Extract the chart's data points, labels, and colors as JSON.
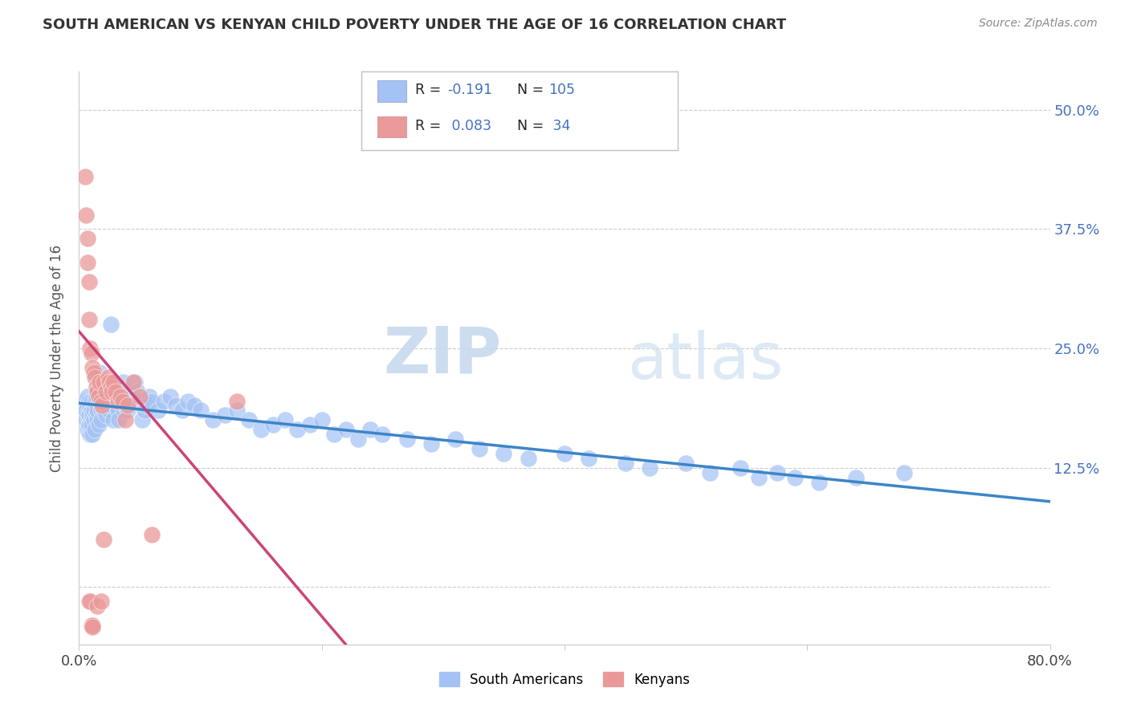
{
  "title": "SOUTH AMERICAN VS KENYAN CHILD POVERTY UNDER THE AGE OF 16 CORRELATION CHART",
  "source": "Source: ZipAtlas.com",
  "ylabel": "Child Poverty Under the Age of 16",
  "xmin": 0.0,
  "xmax": 0.8,
  "ymin": -0.06,
  "ymax": 0.54,
  "xtick_positions": [
    0.0,
    0.2,
    0.4,
    0.6,
    0.8
  ],
  "xticklabels": [
    "0.0%",
    "",
    "",
    "",
    "80.0%"
  ],
  "ytick_positions": [
    0.0,
    0.125,
    0.25,
    0.375,
    0.5
  ],
  "yticklabels_right": [
    "",
    "12.5%",
    "25.0%",
    "37.5%",
    "50.0%"
  ],
  "blue_scatter_color": "#a4c2f4",
  "pink_scatter_color": "#ea9999",
  "blue_line_color": "#3d85c8",
  "pink_line_color": "#cc4477",
  "watermark_text": "ZIPatlas",
  "watermark_color": "#d0dff0",
  "title_color": "#333333",
  "source_color": "#888888",
  "right_tick_color": "#4472c4",
  "grid_color": "#cccccc",
  "blue_label": "South Americans",
  "pink_label": "Kenyans",
  "sa_x": [
    0.005,
    0.006,
    0.006,
    0.007,
    0.007,
    0.008,
    0.008,
    0.008,
    0.009,
    0.009,
    0.01,
    0.01,
    0.01,
    0.01,
    0.01,
    0.011,
    0.011,
    0.012,
    0.012,
    0.012,
    0.013,
    0.013,
    0.014,
    0.014,
    0.015,
    0.015,
    0.016,
    0.016,
    0.017,
    0.017,
    0.018,
    0.018,
    0.019,
    0.02,
    0.02,
    0.021,
    0.022,
    0.023,
    0.024,
    0.025,
    0.026,
    0.027,
    0.028,
    0.03,
    0.031,
    0.032,
    0.033,
    0.034,
    0.035,
    0.036,
    0.037,
    0.038,
    0.04,
    0.042,
    0.044,
    0.046,
    0.048,
    0.05,
    0.052,
    0.054,
    0.056,
    0.058,
    0.06,
    0.065,
    0.07,
    0.075,
    0.08,
    0.085,
    0.09,
    0.095,
    0.1,
    0.11,
    0.12,
    0.13,
    0.14,
    0.15,
    0.16,
    0.17,
    0.18,
    0.19,
    0.2,
    0.21,
    0.22,
    0.23,
    0.24,
    0.25,
    0.27,
    0.29,
    0.31,
    0.33,
    0.35,
    0.37,
    0.4,
    0.42,
    0.45,
    0.47,
    0.5,
    0.52,
    0.545,
    0.56,
    0.575,
    0.59,
    0.61,
    0.64,
    0.68
  ],
  "sa_y": [
    0.195,
    0.175,
    0.185,
    0.165,
    0.2,
    0.17,
    0.18,
    0.195,
    0.16,
    0.19,
    0.175,
    0.185,
    0.165,
    0.17,
    0.195,
    0.18,
    0.16,
    0.19,
    0.175,
    0.185,
    0.165,
    0.195,
    0.18,
    0.2,
    0.175,
    0.185,
    0.215,
    0.17,
    0.225,
    0.195,
    0.185,
    0.175,
    0.205,
    0.2,
    0.185,
    0.195,
    0.18,
    0.2,
    0.195,
    0.185,
    0.275,
    0.19,
    0.175,
    0.2,
    0.19,
    0.185,
    0.175,
    0.195,
    0.2,
    0.215,
    0.185,
    0.19,
    0.185,
    0.195,
    0.2,
    0.215,
    0.205,
    0.195,
    0.175,
    0.185,
    0.19,
    0.2,
    0.195,
    0.185,
    0.195,
    0.2,
    0.19,
    0.185,
    0.195,
    0.19,
    0.185,
    0.175,
    0.18,
    0.185,
    0.175,
    0.165,
    0.17,
    0.175,
    0.165,
    0.17,
    0.175,
    0.16,
    0.165,
    0.155,
    0.165,
    0.16,
    0.155,
    0.15,
    0.155,
    0.145,
    0.14,
    0.135,
    0.14,
    0.135,
    0.13,
    0.125,
    0.13,
    0.12,
    0.125,
    0.115,
    0.12,
    0.115,
    0.11,
    0.115,
    0.12
  ],
  "ke_x": [
    0.005,
    0.006,
    0.007,
    0.007,
    0.008,
    0.008,
    0.009,
    0.01,
    0.011,
    0.012,
    0.013,
    0.014,
    0.015,
    0.016,
    0.017,
    0.018,
    0.019,
    0.02,
    0.022,
    0.024,
    0.025,
    0.026,
    0.027,
    0.028,
    0.03,
    0.032,
    0.034,
    0.036,
    0.038,
    0.04,
    0.045,
    0.05,
    0.06,
    0.13
  ],
  "ke_y": [
    0.43,
    0.39,
    0.365,
    0.34,
    0.32,
    0.28,
    0.25,
    0.245,
    0.23,
    0.225,
    0.22,
    0.21,
    0.205,
    0.2,
    0.215,
    0.195,
    0.19,
    0.215,
    0.205,
    0.22,
    0.215,
    0.21,
    0.205,
    0.215,
    0.205,
    0.195,
    0.2,
    0.195,
    0.175,
    0.19,
    0.215,
    0.2,
    0.055,
    0.195
  ],
  "pink_also_low": [
    [
      0.008,
      -0.015
    ],
    [
      0.009,
      -0.015
    ],
    [
      0.01,
      -0.04
    ],
    [
      0.011,
      -0.04
    ],
    [
      0.011,
      -0.042
    ],
    [
      0.015,
      -0.02
    ],
    [
      0.018,
      -0.015
    ],
    [
      0.02,
      0.05
    ]
  ]
}
